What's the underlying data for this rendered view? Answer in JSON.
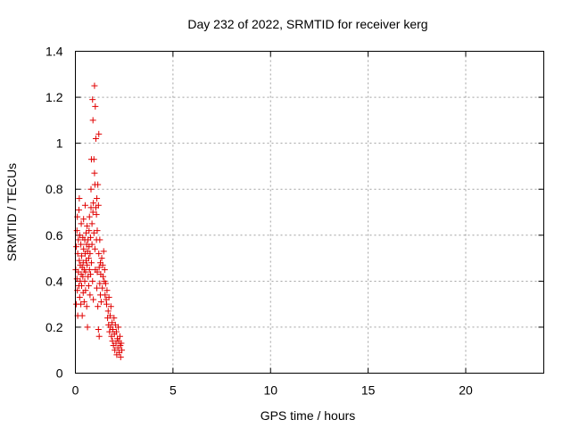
{
  "chart_data": {
    "type": "scatter",
    "title": "Day 232 of 2022, SRMTID for receiver kerg",
    "xlabel": "GPS time / hours",
    "ylabel": "SRMTID / TECUs",
    "xlim": [
      0,
      24
    ],
    "ylim": [
      0,
      1.4
    ],
    "x_ticks": [
      0,
      5,
      10,
      15,
      20
    ],
    "x_tick_labels": [
      "0",
      "5",
      "10",
      "15",
      "20"
    ],
    "y_ticks": [
      0,
      0.2,
      0.4,
      0.6,
      0.8,
      1,
      1.2,
      1.4
    ],
    "y_tick_labels": [
      "0",
      "0.2",
      "0.4",
      "0.6",
      "0.8",
      "1",
      "1.2",
      "1.4"
    ],
    "grid": true,
    "marker": "+",
    "marker_color": "#e00000",
    "series": [
      {
        "name": "kerg",
        "points": [
          [
            0.02,
            0.45
          ],
          [
            0.05,
            0.3
          ],
          [
            0.05,
            0.55
          ],
          [
            0.08,
            0.62
          ],
          [
            0.08,
            0.41
          ],
          [
            0.1,
            0.68
          ],
          [
            0.1,
            0.36
          ],
          [
            0.12,
            0.52
          ],
          [
            0.12,
            0.25
          ],
          [
            0.15,
            0.58
          ],
          [
            0.15,
            0.44
          ],
          [
            0.18,
            0.71
          ],
          [
            0.18,
            0.38
          ],
          [
            0.2,
            0.49
          ],
          [
            0.2,
            0.76
          ],
          [
            0.22,
            0.33
          ],
          [
            0.22,
            0.6
          ],
          [
            0.25,
            0.47
          ],
          [
            0.25,
            0.4
          ],
          [
            0.28,
            0.56
          ],
          [
            0.28,
            0.3
          ],
          [
            0.3,
            0.43
          ],
          [
            0.3,
            0.65
          ],
          [
            0.32,
            0.38
          ],
          [
            0.32,
            0.51
          ],
          [
            0.35,
            0.46
          ],
          [
            0.35,
            0.25
          ],
          [
            0.38,
            0.59
          ],
          [
            0.38,
            0.42
          ],
          [
            0.4,
            0.48
          ],
          [
            0.4,
            0.35
          ],
          [
            0.42,
            0.54
          ],
          [
            0.42,
            0.67
          ],
          [
            0.45,
            0.45
          ],
          [
            0.45,
            0.31
          ],
          [
            0.48,
            0.58
          ],
          [
            0.48,
            0.4
          ],
          [
            0.5,
            0.52
          ],
          [
            0.5,
            0.73
          ],
          [
            0.52,
            0.44
          ],
          [
            0.52,
            0.36
          ],
          [
            0.55,
            0.61
          ],
          [
            0.55,
            0.49
          ],
          [
            0.58,
            0.56
          ],
          [
            0.58,
            0.29
          ],
          [
            0.6,
            0.47
          ],
          [
            0.6,
            0.64
          ],
          [
            0.62,
            0.2
          ],
          [
            0.62,
            0.53
          ],
          [
            0.65,
            0.42
          ],
          [
            0.65,
            0.58
          ],
          [
            0.68,
            0.5
          ],
          [
            0.68,
            0.38
          ],
          [
            0.7,
            0.62
          ],
          [
            0.7,
            0.55
          ],
          [
            0.72,
            0.45
          ],
          [
            0.72,
            0.68
          ],
          [
            0.75,
            0.34
          ],
          [
            0.75,
            0.52
          ],
          [
            0.78,
            0.59
          ],
          [
            0.78,
            0.43
          ],
          [
            0.8,
            0.8
          ],
          [
            0.8,
            0.72
          ],
          [
            0.82,
            0.48
          ],
          [
            0.82,
            0.93
          ],
          [
            0.85,
            0.65
          ],
          [
            0.85,
            0.56
          ],
          [
            0.88,
            1.19
          ],
          [
            0.88,
            0.4
          ],
          [
            0.9,
            1.1
          ],
          [
            0.9,
            0.7
          ],
          [
            0.92,
            0.74
          ],
          [
            0.92,
            0.32
          ],
          [
            0.95,
            0.93
          ],
          [
            0.95,
            0.61
          ],
          [
            0.98,
            1.25
          ],
          [
            0.98,
            0.87
          ],
          [
            1.0,
            0.82
          ],
          [
            1.0,
            0.54
          ],
          [
            1.02,
            1.16
          ],
          [
            1.02,
            0.45
          ],
          [
            1.05,
            1.02
          ],
          [
            1.05,
            0.72
          ],
          [
            1.08,
            0.69
          ],
          [
            1.08,
            0.58
          ],
          [
            1.1,
            0.76
          ],
          [
            1.1,
            0.37
          ],
          [
            1.12,
            0.62
          ],
          [
            1.12,
            0.44
          ],
          [
            1.15,
            0.82
          ],
          [
            1.15,
            0.29
          ],
          [
            1.18,
            0.73
          ],
          [
            1.18,
            0.19
          ],
          [
            1.2,
            1.04
          ],
          [
            1.2,
            0.52
          ],
          [
            1.22,
            0.16
          ],
          [
            1.22,
            0.46
          ],
          [
            1.25,
            0.39
          ],
          [
            1.25,
            0.58
          ],
          [
            1.28,
            0.34
          ],
          [
            1.28,
            0.48
          ],
          [
            1.3,
            0.43
          ],
          [
            1.32,
            0.31
          ],
          [
            1.35,
            0.5
          ],
          [
            1.38,
            0.37
          ],
          [
            1.4,
            0.47
          ],
          [
            1.42,
            0.42
          ],
          [
            1.45,
            0.53
          ],
          [
            1.48,
            0.4
          ],
          [
            1.5,
            0.45
          ],
          [
            1.52,
            0.34
          ],
          [
            1.55,
            0.39
          ],
          [
            1.58,
            0.32
          ],
          [
            1.6,
            0.3
          ],
          [
            1.62,
            0.36
          ],
          [
            1.65,
            0.24
          ],
          [
            1.68,
            0.27
          ],
          [
            1.7,
            0.21
          ],
          [
            1.72,
            0.33
          ],
          [
            1.75,
            0.18
          ],
          [
            1.78,
            0.25
          ],
          [
            1.8,
            0.2
          ],
          [
            1.82,
            0.29
          ],
          [
            1.85,
            0.16
          ],
          [
            1.88,
            0.22
          ],
          [
            1.9,
            0.14
          ],
          [
            1.92,
            0.19
          ],
          [
            1.95,
            0.12
          ],
          [
            1.98,
            0.24
          ],
          [
            2.0,
            0.17
          ],
          [
            2.02,
            0.1
          ],
          [
            2.05,
            0.21
          ],
          [
            2.08,
            0.13
          ],
          [
            2.1,
            0.18
          ],
          [
            2.12,
            0.08
          ],
          [
            2.15,
            0.15
          ],
          [
            2.18,
            0.11
          ],
          [
            2.2,
            0.2
          ],
          [
            2.22,
            0.14
          ],
          [
            2.25,
            0.09
          ],
          [
            2.28,
            0.16
          ],
          [
            2.3,
            0.12
          ],
          [
            2.32,
            0.07
          ],
          [
            2.35,
            0.13
          ],
          [
            2.38,
            0.1
          ]
        ]
      }
    ]
  }
}
